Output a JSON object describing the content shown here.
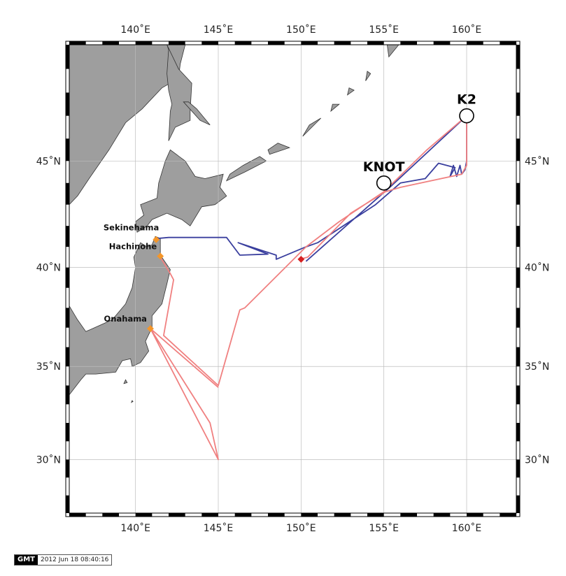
{
  "map": {
    "projection": "Mercator",
    "lon_range": [
      136,
      163
    ],
    "lat_range": [
      27,
      50
    ],
    "land_color": "#9e9e9e",
    "ocean_color": "#ffffff",
    "grid_color": "#bdbdbd",
    "lon_ticks": [
      {
        "value": 140,
        "label": "140˚E"
      },
      {
        "value": 145,
        "label": "145˚E"
      },
      {
        "value": 150,
        "label": "150˚E"
      },
      {
        "value": 155,
        "label": "155˚E"
      },
      {
        "value": 160,
        "label": "160˚E"
      }
    ],
    "lat_ticks": [
      {
        "value": 30,
        "label": "30˚N"
      },
      {
        "value": 35,
        "label": "35˚N"
      },
      {
        "value": 40,
        "label": "40˚N"
      },
      {
        "value": 45,
        "label": "45˚N"
      }
    ]
  },
  "stations": [
    {
      "label": "K2",
      "lon": 160.0,
      "lat": 47.0
    },
    {
      "label": "KNOT",
      "lon": 155.0,
      "lat": 44.0
    }
  ],
  "ports": [
    {
      "label": "Sekinehama",
      "lon": 141.25,
      "lat": 41.35,
      "color": "#f4962a"
    },
    {
      "label": "Hachinohe",
      "lon": 141.5,
      "lat": 40.55,
      "color": "#f4962a"
    },
    {
      "label": "Onahama",
      "lon": 140.9,
      "lat": 36.95,
      "color": "#f4962a"
    }
  ],
  "waypoint": {
    "lon": 150.0,
    "lat": 40.4,
    "color": "#d62020"
  },
  "tracks": [
    {
      "color": "#3a3f9e",
      "points": [
        [
          141.3,
          41.4
        ],
        [
          142.0,
          41.45
        ],
        [
          145.5,
          41.45
        ],
        [
          146.3,
          40.6
        ],
        [
          148.0,
          40.65
        ],
        [
          146.2,
          41.2
        ],
        [
          148.5,
          40.6
        ],
        [
          148.5,
          40.4
        ],
        [
          150.3,
          41.0
        ],
        [
          151.0,
          41.2
        ],
        [
          154.5,
          43.0
        ],
        [
          156.0,
          44.0
        ],
        [
          157.5,
          44.2
        ],
        [
          158.3,
          44.9
        ],
        [
          159.3,
          44.7
        ],
        [
          159.0,
          44.3
        ],
        [
          159.2,
          44.8
        ],
        [
          159.4,
          44.3
        ],
        [
          159.6,
          44.8
        ],
        [
          159.7,
          44.4
        ],
        [
          159.9,
          44.6
        ],
        [
          160.0,
          45.0
        ],
        [
          160.0,
          47.0
        ],
        [
          155.5,
          43.9
        ],
        [
          150.3,
          40.3
        ]
      ]
    },
    {
      "color": "#f08080",
      "points": [
        [
          141.5,
          40.5
        ],
        [
          142.1,
          39.7
        ],
        [
          142.3,
          39.4
        ],
        [
          141.7,
          36.6
        ],
        [
          145.0,
          34.0
        ],
        [
          146.3,
          37.9
        ],
        [
          146.6,
          38.0
        ],
        [
          150.3,
          41.0
        ],
        [
          152.3,
          42.2
        ],
        [
          155.0,
          43.6
        ],
        [
          157.6,
          45.5
        ],
        [
          160.0,
          47.0
        ],
        [
          160.0,
          44.8
        ],
        [
          159.7,
          44.4
        ],
        [
          156.0,
          43.8
        ],
        [
          155.1,
          43.6
        ],
        [
          153.0,
          42.6
        ],
        [
          150.4,
          40.5
        ],
        [
          149.9,
          40.4
        ]
      ]
    },
    {
      "color": "#f08080",
      "points": [
        [
          140.9,
          36.95
        ],
        [
          145.0,
          30.0
        ],
        [
          144.5,
          32.0
        ],
        [
          140.9,
          36.95
        ],
        [
          145.0,
          33.9
        ]
      ]
    }
  ],
  "land": [
    [
      [
        136,
        50
      ],
      [
        143,
        50
      ],
      [
        142.7,
        49.2
      ],
      [
        142.6,
        48.6
      ],
      [
        141.6,
        48.2
      ],
      [
        140.4,
        47.3
      ],
      [
        139.4,
        46.7
      ],
      [
        138.4,
        45.5
      ],
      [
        137.2,
        44.2
      ],
      [
        136.5,
        43.4
      ],
      [
        136,
        43
      ]
    ],
    [
      [
        141.9,
        50
      ],
      [
        142.6,
        49
      ],
      [
        143.4,
        48.4
      ],
      [
        143.3,
        47.2
      ],
      [
        143.3,
        46.8
      ],
      [
        142.4,
        46.5
      ],
      [
        142.0,
        45.9
      ],
      [
        142.1,
        47.2
      ],
      [
        142.2,
        47.5
      ],
      [
        142.0,
        48.1
      ],
      [
        141.9,
        48.8
      ],
      [
        142.0,
        49.8
      ]
    ],
    [
      [
        142.9,
        47.6
      ],
      [
        143.9,
        46.8
      ],
      [
        144.5,
        46.6
      ],
      [
        143.7,
        47.3
      ],
      [
        143.2,
        47.6
      ]
    ],
    [
      [
        143.0,
        45.0
      ],
      [
        143.6,
        44.3
      ],
      [
        144.2,
        44.2
      ],
      [
        145.3,
        44.4
      ],
      [
        145.1,
        43.8
      ],
      [
        145.5,
        43.4
      ],
      [
        144.8,
        43.0
      ],
      [
        144.0,
        42.9
      ],
      [
        143.3,
        42.0
      ],
      [
        142.8,
        42.3
      ],
      [
        141.9,
        42.6
      ],
      [
        141.0,
        42.3
      ],
      [
        140.7,
        42.0
      ],
      [
        140.1,
        41.7
      ],
      [
        140.0,
        42.2
      ],
      [
        140.5,
        42.5
      ],
      [
        140.3,
        43.0
      ],
      [
        141.3,
        43.3
      ],
      [
        141.4,
        44.0
      ],
      [
        141.8,
        45.0
      ],
      [
        142.1,
        45.5
      ],
      [
        143.0,
        45.0
      ]
    ],
    [
      [
        141.2,
        41.5
      ],
      [
        141.5,
        41.4
      ],
      [
        141.5,
        40.6
      ],
      [
        142.1,
        39.9
      ],
      [
        141.9,
        39.2
      ],
      [
        141.6,
        38.2
      ],
      [
        141.0,
        37.6
      ],
      [
        141.0,
        37.0
      ],
      [
        140.6,
        36.3
      ],
      [
        140.8,
        35.8
      ],
      [
        140.3,
        35.2
      ],
      [
        139.8,
        35.0
      ],
      [
        139.7,
        35.4
      ],
      [
        139.2,
        35.3
      ],
      [
        138.8,
        34.7
      ],
      [
        137.6,
        34.6
      ],
      [
        137.0,
        34.6
      ],
      [
        136.7,
        34.3
      ],
      [
        136,
        33.5
      ],
      [
        136,
        38.1
      ],
      [
        136.5,
        37.4
      ],
      [
        137.0,
        36.8
      ],
      [
        138.6,
        37.4
      ],
      [
        139.4,
        38.2
      ],
      [
        139.8,
        39.0
      ],
      [
        140.0,
        40.0
      ],
      [
        139.9,
        40.5
      ],
      [
        140.3,
        41.2
      ],
      [
        140.7,
        41.0
      ],
      [
        141.0,
        41.1
      ],
      [
        141.2,
        41.5
      ]
    ],
    [
      [
        145.5,
        44.1
      ],
      [
        146.6,
        44.5
      ],
      [
        147.9,
        45.0
      ],
      [
        147.5,
        45.2
      ],
      [
        146.5,
        44.8
      ],
      [
        145.7,
        44.4
      ]
    ],
    [
      [
        148.1,
        45.3
      ],
      [
        149.3,
        45.6
      ],
      [
        148.6,
        45.8
      ],
      [
        148.0,
        45.5
      ]
    ],
    [
      [
        150.1,
        46.1
      ],
      [
        151.2,
        46.9
      ],
      [
        150.5,
        46.6
      ]
    ],
    [
      [
        151.8,
        47.2
      ],
      [
        152.3,
        47.5
      ],
      [
        151.9,
        47.5
      ]
    ],
    [
      [
        152.8,
        47.9
      ],
      [
        153.2,
        48.1
      ],
      [
        152.9,
        48.2
      ]
    ],
    [
      [
        153.9,
        48.5
      ],
      [
        154.2,
        48.8
      ],
      [
        154.0,
        48.9
      ]
    ],
    [
      [
        155.3,
        49.5
      ],
      [
        155.9,
        50.0
      ],
      [
        155.2,
        50.0
      ]
    ],
    [
      [
        139.3,
        34.1
      ],
      [
        139.5,
        34.15
      ],
      [
        139.4,
        34.3
      ]
    ],
    [
      [
        139.75,
        33.1
      ],
      [
        139.85,
        33.15
      ],
      [
        139.8,
        33.2
      ]
    ]
  ],
  "stamp": {
    "logo": "GMT",
    "timestamp": "2012 Jun 18 08:40:16"
  }
}
